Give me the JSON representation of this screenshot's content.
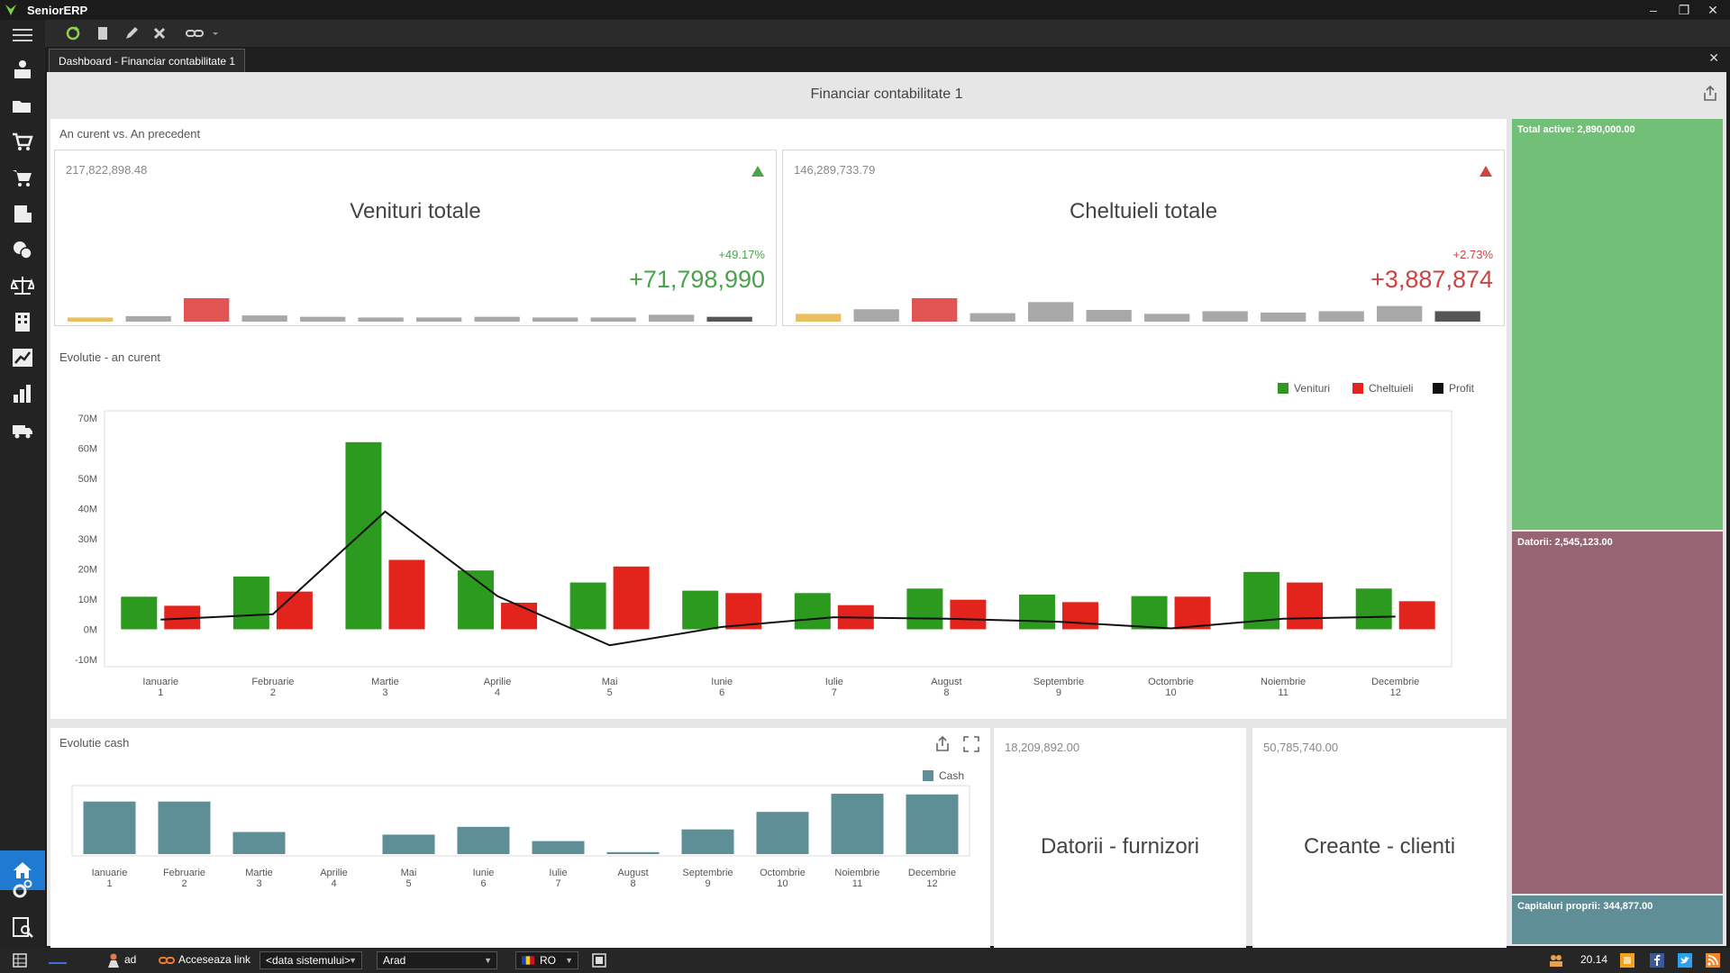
{
  "app": {
    "title": "SeniorERP"
  },
  "tab": {
    "label": "Dashboard - Financiar contabilitate 1"
  },
  "dashboard": {
    "title": "Financiar contabilitate 1"
  },
  "comparison": {
    "label": "An curent vs. An precedent",
    "cards": [
      {
        "name": "Venituri totale",
        "base": "217,822,898.48",
        "percent": "+49.17%",
        "delta": "+71,798,990",
        "color": "#4aa34a",
        "trend": "up",
        "spark": [
          0.6,
          0.8,
          3.4,
          0.9,
          0.7,
          0.6,
          0.6,
          0.7,
          0.6,
          0.6,
          1.0,
          0.7
        ]
      },
      {
        "name": "Cheltuieli totale",
        "base": "146,289,733.79",
        "percent": "+2.73%",
        "delta": "+3,887,874",
        "color": "#cc4444",
        "trend": "up",
        "spark": [
          1.2,
          1.9,
          3.6,
          1.3,
          3.0,
          1.8,
          1.2,
          1.6,
          1.4,
          1.6,
          2.4,
          1.6
        ]
      }
    ],
    "spark_colors": {
      "first": "#e8c060",
      "peak": "#e05454",
      "last": "#555555",
      "other": "#a8a8a8"
    }
  },
  "evolution": {
    "label": "Evolutie - an curent",
    "legend": [
      {
        "name": "Venituri",
        "color": "#2b9a1e"
      },
      {
        "name": "Cheltuieli",
        "color": "#e3241c"
      },
      {
        "name": "Profit",
        "color": "#111111"
      }
    ]
  },
  "cash": {
    "label": "Evolutie cash",
    "legend": [
      {
        "name": "Cash",
        "color": "#5e8e96"
      }
    ]
  },
  "chart_data": [
    {
      "type": "bar",
      "title": "Evolutie - an curent",
      "categories": [
        "Ianuarie",
        "Februarie",
        "Martie",
        "Aprilie",
        "Mai",
        "Iunie",
        "Iulie",
        "August",
        "Septembrie",
        "Octombrie",
        "Noiembrie",
        "Decembrie"
      ],
      "category_numbers": [
        "1",
        "2",
        "3",
        "4",
        "5",
        "6",
        "7",
        "8",
        "9",
        "10",
        "11",
        "12"
      ],
      "series": [
        {
          "name": "Venituri",
          "type": "bar",
          "color": "#2b9a1e",
          "values": [
            10.8,
            17.5,
            62.0,
            19.5,
            15.5,
            12.8,
            12.0,
            13.5,
            11.5,
            11.0,
            19.0,
            13.5
          ]
        },
        {
          "name": "Cheltuieli",
          "type": "bar",
          "color": "#e3241c",
          "values": [
            7.8,
            12.5,
            23.0,
            8.8,
            20.8,
            12.0,
            8.0,
            9.8,
            9.0,
            10.8,
            15.5,
            9.3
          ]
        },
        {
          "name": "Profit",
          "type": "line",
          "color": "#111111",
          "values": [
            3.2,
            5.0,
            39.0,
            11.0,
            -5.3,
            0.8,
            4.0,
            3.5,
            2.5,
            0.3,
            3.5,
            4.2
          ]
        }
      ],
      "ylim": [
        -10,
        70
      ],
      "yticks": [
        "-10M",
        "0M",
        "10M",
        "20M",
        "30M",
        "40M",
        "50M",
        "60M",
        "70M"
      ],
      "ytick_values": [
        -10,
        0,
        10,
        20,
        30,
        40,
        50,
        60,
        70
      ],
      "legend": "top-right"
    },
    {
      "type": "bar",
      "title": "Evolutie cash",
      "categories": [
        "Ianuarie",
        "Februarie",
        "Martie",
        "Aprilie",
        "Mai",
        "Iunie",
        "Iulie",
        "August",
        "Septembrie",
        "Octombrie",
        "Noiembrie",
        "Decembrie"
      ],
      "category_numbers": [
        "1",
        "2",
        "3",
        "4",
        "5",
        "6",
        "7",
        "8",
        "9",
        "10",
        "11",
        "12"
      ],
      "series": [
        {
          "name": "Cash",
          "color": "#5e8e96",
          "values": [
            0.81,
            0.81,
            0.34,
            0.0,
            0.3,
            0.42,
            0.2,
            0.03,
            0.38,
            0.65,
            0.93,
            0.92
          ]
        }
      ],
      "ylim": [
        0,
        1
      ],
      "legend": "top-right"
    }
  ],
  "treemap": [
    {
      "label": "Total active: 2,890,000.00",
      "value": 2890000,
      "color": "#72bf78"
    },
    {
      "label": "Datorii: 2,545,123.00",
      "value": 2545123,
      "color": "#976474"
    },
    {
      "label": "Capitaluri proprii: 344,877.00",
      "value": 344877,
      "color": "#5f8e96"
    }
  ],
  "kpis": [
    {
      "name": "Datorii - furnizori",
      "base": "18,209,892.00"
    },
    {
      "name": "Creante - clienti",
      "base": "50,785,740.00"
    }
  ],
  "status": {
    "user": "ad",
    "link_label": "Acceseaza link",
    "date_value": "<data sistemului>",
    "location": "Arad",
    "language": "RO",
    "time": "20.14"
  }
}
